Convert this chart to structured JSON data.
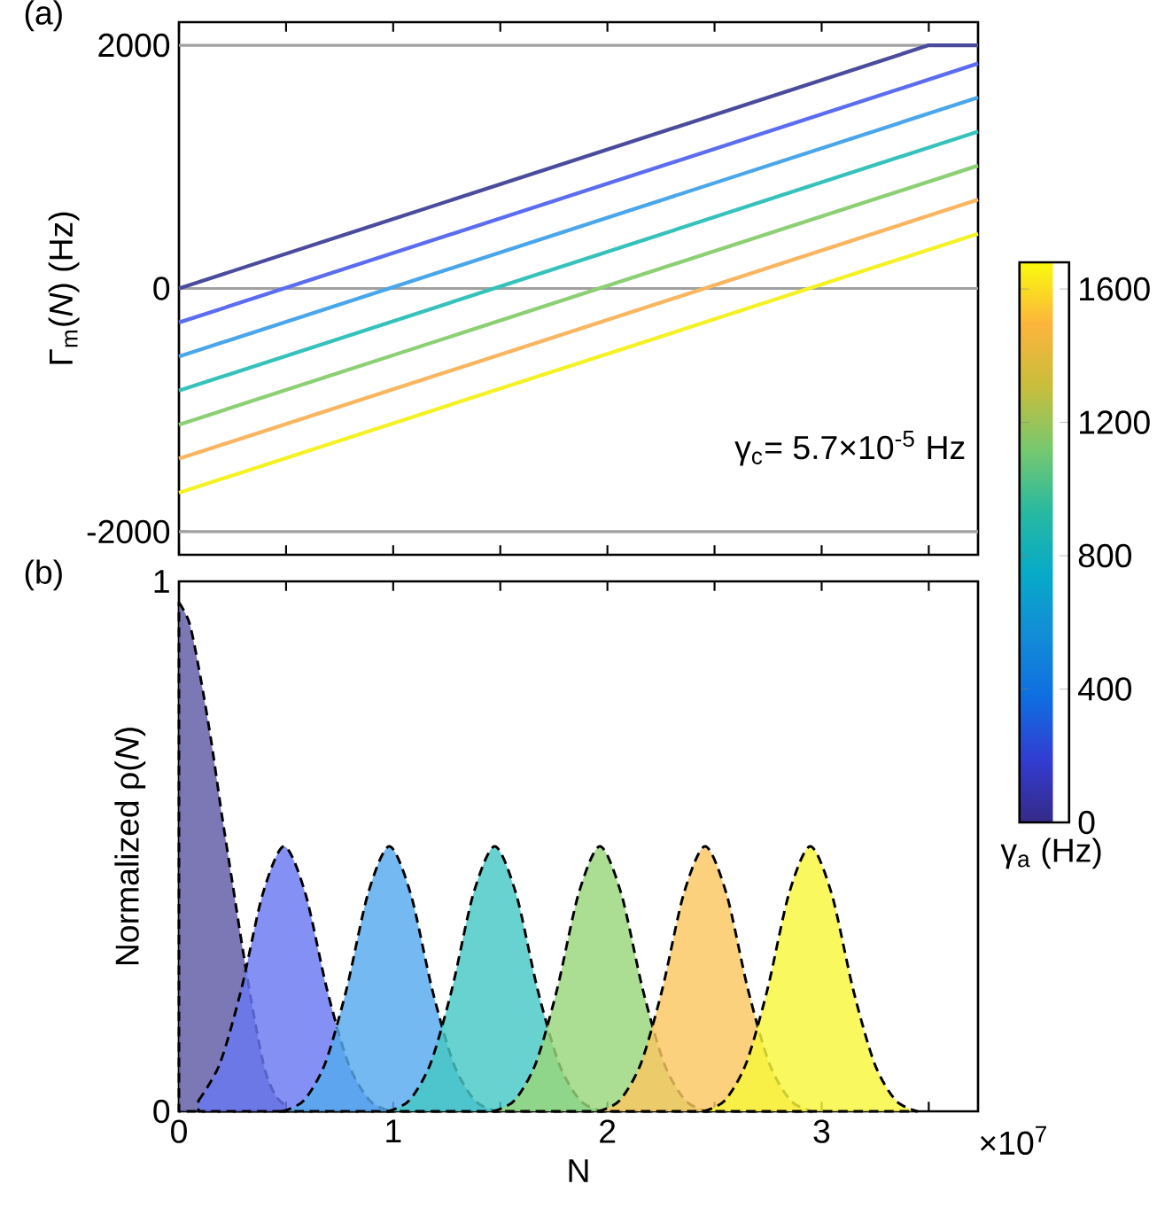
{
  "chart_data": [
    {
      "type": "line",
      "title": "(a)",
      "ylabel": "Γ$_{m}$(*N*) (Hz)",
      "xlim": [
        0,
        3.73
      ],
      "ylim": [
        -2190,
        2190
      ],
      "xticks": [
        0,
        0.5,
        1,
        1.5,
        2,
        2.5,
        3,
        3.5
      ],
      "yticks": [
        -2000,
        0,
        2000
      ],
      "tick_labels": "y",
      "ref_lines": [
        {
          "axis": "y",
          "value": 2000,
          "color": "#a0a0a0"
        },
        {
          "axis": "y",
          "value": 0,
          "color": "#a0a0a0"
        },
        {
          "axis": "y",
          "value": -2000,
          "color": "#a0a0a0"
        }
      ],
      "annotations": [
        "γ$_{c}$= 5.7×10$^{-5}$ Hz"
      ],
      "clabel": "γ$_{a}$ (Hz)",
      "clim": [
        0,
        1680
      ],
      "cticks": [
        0,
        400,
        800,
        1200,
        1600
      ],
      "series": [
        {
          "color": "#4b4b9e",
          "x": [
            0,
            3.5,
            3.73
          ],
          "values": [
            0,
            2000,
            2000
          ]
        },
        {
          "color": "#5c6cf2",
          "x": [
            0,
            3.73
          ],
          "values": [
            -280,
            1850
          ]
        },
        {
          "color": "#4aa6ea",
          "x": [
            0,
            3.73
          ],
          "values": [
            -560,
            1570
          ]
        },
        {
          "color": "#36c2bb",
          "x": [
            0,
            3.73
          ],
          "values": [
            -840,
            1290
          ]
        },
        {
          "color": "#8ccf74",
          "x": [
            0,
            3.73
          ],
          "values": [
            -1120,
            1010
          ]
        },
        {
          "color": "#f9b560",
          "x": [
            0,
            3.73
          ],
          "values": [
            -1400,
            730
          ]
        },
        {
          "color": "#f4f224",
          "x": [
            0,
            3.73
          ],
          "values": [
            -1680,
            450
          ]
        }
      ]
    },
    {
      "type": "area",
      "title": "(b)",
      "xlabel": "N",
      "ylabel": "Normalized ρ(*N*)",
      "xlim": [
        0,
        3.73
      ],
      "ylim": [
        0,
        1
      ],
      "xticks": [
        0,
        {
          "value": 0.5,
          "label": null
        },
        1,
        {
          "value": 1.5,
          "label": null
        },
        2,
        {
          "value": 2.5,
          "label": null
        },
        3,
        {
          "value": 3.5,
          "label": null
        }
      ],
      "yticks": [
        0,
        1
      ],
      "line_style": "dashed",
      "annotations": [
        "×10$^{7}$"
      ],
      "series": [
        {
          "color": "#5f5aa6",
          "x": [
            0,
            0.05,
            0.1,
            0.15,
            0.2,
            0.25,
            0.3,
            0.35,
            0.4,
            0.45,
            0.5
          ],
          "values": [
            0.96,
            0.92,
            0.82,
            0.7,
            0.56,
            0.43,
            0.3,
            0.18,
            0.08,
            0.03,
            0.01
          ]
        },
        {
          "color": "#6a78f2",
          "x": [
            0.091,
            0.191,
            0.291,
            0.391,
            0.491,
            0.591,
            0.691,
            0.791,
            0.891,
            0.991
          ],
          "values": [
            0.02,
            0.09,
            0.23,
            0.41,
            0.5,
            0.41,
            0.23,
            0.09,
            0.02,
            0
          ]
        },
        {
          "color": "#55aaee",
          "x": [
            0.482,
            0.582,
            0.682,
            0.782,
            0.882,
            0.982,
            1.082,
            1.182,
            1.282,
            1.382,
            1.482
          ],
          "values": [
            0,
            0.02,
            0.09,
            0.23,
            0.41,
            0.5,
            0.41,
            0.23,
            0.09,
            0.02,
            0
          ]
        },
        {
          "color": "#45c8c4",
          "x": [
            0.974,
            1.074,
            1.174,
            1.274,
            1.374,
            1.474,
            1.574,
            1.674,
            1.774,
            1.874,
            1.974
          ],
          "values": [
            0,
            0.02,
            0.09,
            0.23,
            0.41,
            0.5,
            0.41,
            0.23,
            0.09,
            0.02,
            0
          ]
        },
        {
          "color": "#98d57a",
          "x": [
            1.465,
            1.565,
            1.665,
            1.765,
            1.865,
            1.965,
            2.065,
            2.165,
            2.265,
            2.365,
            2.465
          ],
          "values": [
            0,
            0.02,
            0.09,
            0.23,
            0.41,
            0.5,
            0.41,
            0.23,
            0.09,
            0.02,
            0
          ]
        },
        {
          "color": "#fac762",
          "x": [
            1.956,
            2.056,
            2.156,
            2.256,
            2.356,
            2.456,
            2.556,
            2.656,
            2.756,
            2.856,
            2.956
          ],
          "values": [
            0,
            0.02,
            0.09,
            0.23,
            0.41,
            0.5,
            0.41,
            0.23,
            0.09,
            0.02,
            0
          ]
        },
        {
          "color": "#f8f63a",
          "x": [
            2.447,
            2.547,
            2.647,
            2.747,
            2.847,
            2.947,
            3.047,
            3.147,
            3.247,
            3.347,
            3.447
          ],
          "values": [
            0,
            0.02,
            0.09,
            0.23,
            0.41,
            0.5,
            0.41,
            0.23,
            0.09,
            0.02,
            0
          ]
        }
      ]
    }
  ]
}
